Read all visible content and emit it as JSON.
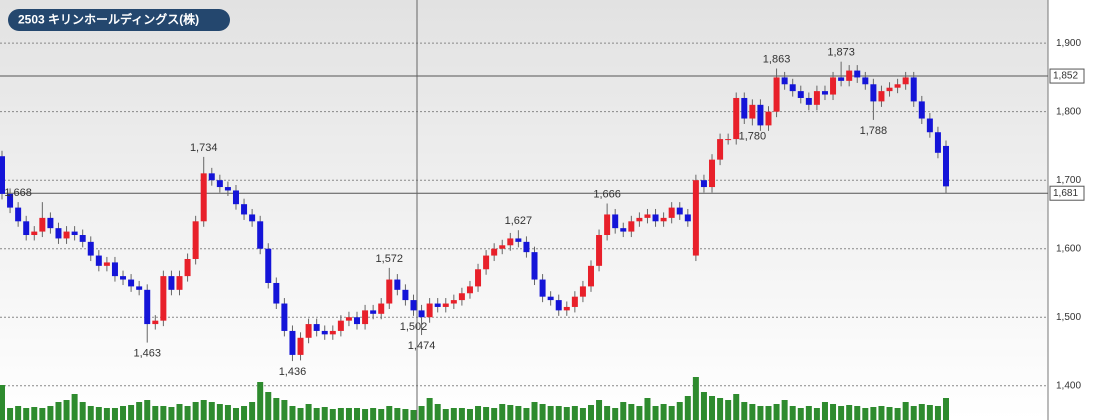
{
  "chart_data": {
    "type": "candlestick",
    "title": "2503 キリンホールディングス(株)",
    "open": [
      1735,
      1680,
      1660,
      1640,
      1620,
      1625,
      1645,
      1630,
      1615,
      1625,
      1620,
      1610,
      1590,
      1575,
      1580,
      1560,
      1555,
      1545,
      1540,
      1490,
      1495,
      1560,
      1540,
      1560,
      1585,
      1640,
      1710,
      1700,
      1690,
      1685,
      1665,
      1650,
      1640,
      1600,
      1550,
      1520,
      1480,
      1445,
      1470,
      1490,
      1480,
      1475,
      1480,
      1495,
      1500,
      1490,
      1510,
      1505,
      1520,
      1555,
      1540,
      1525,
      1510,
      1500,
      1520,
      1515,
      1520,
      1525,
      1535,
      1545,
      1570,
      1590,
      1600,
      1605,
      1615,
      1610,
      1595,
      1555,
      1530,
      1525,
      1510,
      1515,
      1530,
      1545,
      1575,
      1620,
      1650,
      1630,
      1625,
      1640,
      1645,
      1650,
      1640,
      1645,
      1660,
      1650,
      1590,
      1700,
      1690,
      1730,
      1760,
      1760,
      1820,
      1790,
      1810,
      1780,
      1800,
      1850,
      1840,
      1830,
      1820,
      1810,
      1830,
      1825,
      1850,
      1845,
      1860,
      1850,
      1840,
      1815,
      1830,
      1835,
      1840,
      1850,
      1815,
      1790,
      1770,
      1750
    ],
    "high": [
      1743,
      1688,
      1668,
      1648,
      1633,
      1668,
      1653,
      1638,
      1633,
      1633,
      1628,
      1618,
      1598,
      1588,
      1588,
      1568,
      1563,
      1553,
      1548,
      1503,
      1568,
      1568,
      1568,
      1593,
      1648,
      1734,
      1718,
      1708,
      1698,
      1693,
      1673,
      1658,
      1648,
      1608,
      1558,
      1528,
      1488,
      1478,
      1498,
      1498,
      1488,
      1488,
      1503,
      1508,
      1508,
      1518,
      1518,
      1528,
      1572,
      1563,
      1548,
      1533,
      1518,
      1528,
      1528,
      1528,
      1533,
      1543,
      1553,
      1578,
      1598,
      1608,
      1613,
      1623,
      1627,
      1618,
      1603,
      1563,
      1538,
      1533,
      1523,
      1538,
      1553,
      1583,
      1628,
      1666,
      1658,
      1638,
      1648,
      1653,
      1658,
      1658,
      1653,
      1668,
      1668,
      1658,
      1708,
      1708,
      1738,
      1768,
      1768,
      1828,
      1828,
      1818,
      1818,
      1808,
      1863,
      1858,
      1848,
      1838,
      1828,
      1838,
      1838,
      1858,
      1873,
      1868,
      1868,
      1858,
      1848,
      1838,
      1843,
      1848,
      1858,
      1858,
      1823,
      1798,
      1778,
      1758
    ],
    "low": [
      1672,
      1652,
      1632,
      1612,
      1612,
      1617,
      1622,
      1607,
      1607,
      1612,
      1602,
      1582,
      1567,
      1567,
      1552,
      1547,
      1537,
      1532,
      1463,
      1482,
      1487,
      1532,
      1532,
      1552,
      1577,
      1632,
      1692,
      1682,
      1677,
      1657,
      1642,
      1632,
      1592,
      1542,
      1512,
      1472,
      1436,
      1437,
      1462,
      1472,
      1467,
      1467,
      1472,
      1487,
      1482,
      1482,
      1497,
      1497,
      1512,
      1532,
      1517,
      1502,
      1474,
      1492,
      1507,
      1507,
      1512,
      1517,
      1527,
      1537,
      1562,
      1582,
      1592,
      1597,
      1602,
      1587,
      1547,
      1522,
      1517,
      1502,
      1502,
      1507,
      1522,
      1537,
      1567,
      1612,
      1622,
      1617,
      1617,
      1632,
      1637,
      1632,
      1632,
      1637,
      1642,
      1632,
      1582,
      1682,
      1682,
      1722,
      1752,
      1752,
      1782,
      1780,
      1772,
      1772,
      1792,
      1832,
      1822,
      1812,
      1802,
      1802,
      1817,
      1817,
      1837,
      1837,
      1842,
      1832,
      1788,
      1807,
      1822,
      1827,
      1832,
      1807,
      1782,
      1762,
      1732,
      1681
    ],
    "close": [
      1680,
      1660,
      1640,
      1620,
      1625,
      1645,
      1630,
      1615,
      1625,
      1620,
      1610,
      1590,
      1575,
      1580,
      1560,
      1555,
      1545,
      1540,
      1490,
      1495,
      1560,
      1540,
      1560,
      1585,
      1640,
      1710,
      1700,
      1690,
      1685,
      1665,
      1650,
      1640,
      1600,
      1550,
      1520,
      1480,
      1445,
      1470,
      1490,
      1480,
      1475,
      1480,
      1495,
      1500,
      1490,
      1510,
      1505,
      1520,
      1555,
      1540,
      1525,
      1510,
      1500,
      1520,
      1515,
      1520,
      1525,
      1535,
      1545,
      1570,
      1590,
      1600,
      1605,
      1615,
      1610,
      1595,
      1555,
      1530,
      1525,
      1510,
      1515,
      1530,
      1545,
      1575,
      1620,
      1650,
      1630,
      1625,
      1640,
      1645,
      1650,
      1640,
      1645,
      1660,
      1650,
      1640,
      1700,
      1690,
      1730,
      1760,
      1760,
      1820,
      1790,
      1810,
      1780,
      1800,
      1850,
      1840,
      1830,
      1820,
      1810,
      1830,
      1825,
      1850,
      1845,
      1860,
      1850,
      1840,
      1815,
      1830,
      1835,
      1840,
      1850,
      1815,
      1790,
      1770,
      1740,
      1691
    ],
    "volume": [
      35,
      12,
      14,
      12,
      13,
      12,
      14,
      18,
      20,
      26,
      18,
      14,
      13,
      12,
      12,
      14,
      15,
      18,
      20,
      14,
      14,
      13,
      16,
      14,
      18,
      20,
      18,
      16,
      15,
      12,
      14,
      18,
      38,
      28,
      22,
      20,
      14,
      12,
      16,
      12,
      13,
      11,
      12,
      12,
      12,
      11,
      12,
      11,
      14,
      12,
      11,
      10,
      14,
      22,
      16,
      11,
      12,
      12,
      11,
      14,
      13,
      12,
      16,
      15,
      14,
      12,
      18,
      16,
      14,
      14,
      13,
      14,
      12,
      15,
      20,
      14,
      12,
      18,
      16,
      14,
      22,
      14,
      16,
      14,
      18,
      24,
      43,
      28,
      24,
      22,
      20,
      26,
      18,
      16,
      14,
      14,
      16,
      20,
      14,
      12,
      14,
      12,
      18,
      16,
      14,
      15,
      14,
      12,
      13,
      14,
      13,
      12,
      18,
      14,
      16,
      15,
      14,
      22
    ],
    "up_color": "#e8202a",
    "down_color": "#1414d8",
    "volume_color": "#2e8b2e",
    "ylim": [
      1350,
      1963
    ],
    "yticks": [
      {
        "value": 1400,
        "label": "1,400"
      },
      {
        "value": 1500,
        "label": "1,500"
      },
      {
        "value": 1600,
        "label": "1,600"
      },
      {
        "value": 1700,
        "label": "1,700"
      },
      {
        "value": 1800,
        "label": "1,800"
      },
      {
        "value": 1900,
        "label": "1,900"
      }
    ],
    "ref_lines": [
      {
        "value": 1852,
        "label": "1,852"
      },
      {
        "value": 1681,
        "label": "1,681"
      }
    ],
    "annotations": [
      {
        "value": 1668,
        "label": "1,668"
      },
      {
        "value": 1734,
        "label": "1,734"
      },
      {
        "value": 1463,
        "label": "1,463"
      },
      {
        "value": 1436,
        "label": "1,436"
      },
      {
        "value": 1572,
        "label": "1,572"
      },
      {
        "value": 1474,
        "label": "1,474"
      },
      {
        "value": 1627,
        "label": "1,627"
      },
      {
        "value": 1502,
        "label": "1,502"
      },
      {
        "value": 1666,
        "label": "1,666"
      },
      {
        "value": 1863,
        "label": "1,863"
      },
      {
        "value": 1780,
        "label": "1,780"
      },
      {
        "value": 1873,
        "label": "1,873"
      },
      {
        "value": 1788,
        "label": "1,788"
      }
    ]
  }
}
